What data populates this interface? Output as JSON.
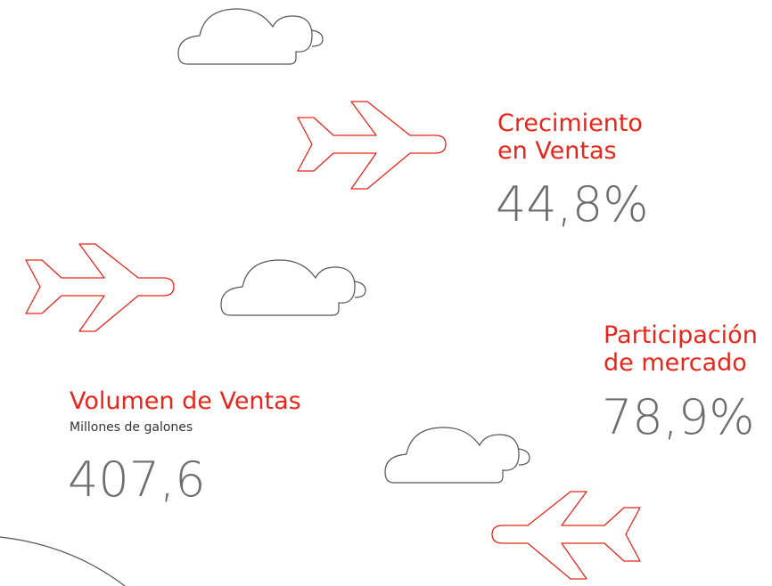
{
  "stats": [
    {
      "label": [
        "Crecimiento",
        "en Ventas"
      ],
      "value": "44,8%"
    },
    {
      "label": [
        "Participación",
        "de mercado"
      ],
      "value": "78,9%"
    },
    {
      "label": [
        "Volumen de Ventas"
      ],
      "note": "Millones de galones",
      "value": "407,6"
    }
  ]
}
